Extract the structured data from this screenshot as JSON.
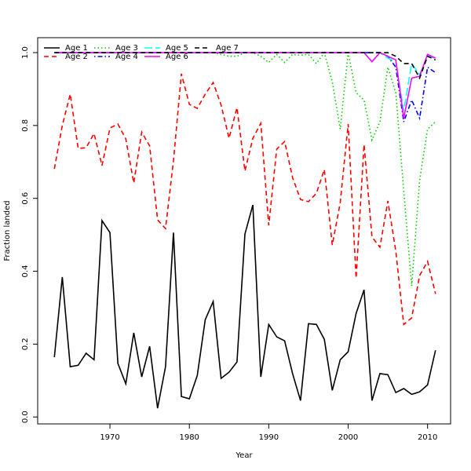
{
  "chart_data": {
    "type": "line",
    "xlabel": "Year",
    "ylabel": "Fraction landed",
    "x": [
      1963,
      1964,
      1965,
      1966,
      1967,
      1968,
      1969,
      1970,
      1971,
      1972,
      1973,
      1974,
      1975,
      1976,
      1977,
      1978,
      1979,
      1980,
      1981,
      1982,
      1983,
      1984,
      1985,
      1986,
      1987,
      1988,
      1989,
      1990,
      1991,
      1992,
      1993,
      1994,
      1995,
      1996,
      1997,
      1998,
      1999,
      2000,
      2001,
      2002,
      2003,
      2004,
      2005,
      2006,
      2007,
      2008,
      2009,
      2010,
      2011
    ],
    "xlim": [
      1960.9,
      2012.9
    ],
    "xticks": [
      1970,
      1980,
      1990,
      2000,
      2010
    ],
    "ylim": [
      -0.019,
      1.041
    ],
    "yticks": [
      {
        "value": 0,
        "label": "0.0"
      },
      0.2,
      0.4,
      0.6,
      0.8,
      {
        "value": 1,
        "label": "1.0"
      }
    ],
    "legend": "top-left",
    "series": [
      {
        "name": "Age 1",
        "color": "#000000",
        "line_style": "solid",
        "values": [
          0.164,
          0.384,
          0.138,
          0.142,
          0.175,
          0.157,
          0.539,
          0.506,
          0.147,
          0.091,
          0.231,
          0.11,
          0.194,
          0.024,
          0.138,
          0.506,
          0.056,
          0.05,
          0.114,
          0.267,
          0.317,
          0.106,
          0.123,
          0.151,
          0.502,
          0.582,
          0.11,
          0.254,
          0.22,
          0.209,
          0.119,
          0.045,
          0.256,
          0.254,
          0.213,
          0.073,
          0.157,
          0.179,
          0.284,
          0.349,
          0.045,
          0.119,
          0.116,
          0.067,
          0.078,
          0.062,
          0.069,
          0.088,
          0.183
        ]
      },
      {
        "name": "Age 2",
        "color": "#ff0000",
        "line_style": "dashed",
        "values": [
          0.681,
          0.8,
          0.886,
          0.737,
          0.739,
          0.778,
          0.69,
          0.793,
          0.804,
          0.763,
          0.642,
          0.782,
          0.744,
          0.541,
          0.517,
          0.703,
          0.942,
          0.858,
          0.847,
          0.886,
          0.918,
          0.856,
          0.765,
          0.849,
          0.675,
          0.765,
          0.806,
          0.526,
          0.735,
          0.756,
          0.657,
          0.597,
          0.591,
          0.614,
          0.679,
          0.472,
          0.588,
          0.804,
          0.381,
          0.748,
          0.494,
          0.466,
          0.593,
          0.455,
          0.254,
          0.272,
          0.388,
          0.427,
          0.338
        ]
      },
      {
        "name": "Age 3",
        "color": "#00cd00",
        "line_style": "dotted",
        "values": [
          1,
          1,
          1,
          1,
          1,
          1,
          1,
          1,
          1,
          1,
          1,
          1,
          1,
          1,
          1,
          1,
          1,
          1,
          1,
          1,
          1,
          0.995,
          0.99,
          0.99,
          1,
          1,
          0.99,
          0.973,
          0.995,
          0.973,
          0.995,
          0.993,
          0.995,
          0.97,
          1,
          0.92,
          0.79,
          1,
          0.89,
          0.87,
          0.76,
          0.81,
          0.96,
          0.89,
          0.62,
          0.36,
          0.65,
          0.79,
          0.81
        ]
      },
      {
        "name": "Age 4",
        "color": "#0000ff",
        "line_style": "dotdash",
        "values": [
          1,
          1,
          1,
          1,
          1,
          1,
          1,
          1,
          1,
          1,
          1,
          1,
          1,
          1,
          1,
          1,
          1,
          1,
          1,
          1,
          1,
          1,
          1,
          1,
          1,
          1,
          1,
          1,
          1,
          1,
          1,
          1,
          1,
          1,
          1,
          1,
          1,
          1,
          1,
          1,
          1,
          1,
          0.99,
          0.96,
          0.81,
          0.87,
          0.82,
          0.96,
          0.945
        ]
      },
      {
        "name": "Age 5",
        "color": "#00ffff",
        "line_style": "longdash",
        "values": [
          1,
          1,
          1,
          1,
          1,
          1,
          1,
          1,
          1,
          1,
          1,
          1,
          1,
          1,
          1,
          1,
          1,
          1,
          1,
          1,
          1,
          1,
          1,
          1,
          1,
          1,
          1,
          1,
          1,
          1,
          1,
          1,
          1,
          1,
          1,
          1,
          1,
          1,
          1,
          1,
          0.975,
          1,
          0.985,
          0.975,
          0.84,
          0.97,
          0.94,
          0.99,
          0.985
        ]
      },
      {
        "name": "Age 6",
        "color": "#ff00ff",
        "line_style": "solid",
        "values": [
          1,
          1,
          1,
          1,
          1,
          1,
          1,
          1,
          1,
          1,
          1,
          1,
          1,
          1,
          1,
          1,
          1,
          1,
          1,
          1,
          1,
          1,
          1,
          1,
          1,
          1,
          1,
          1,
          1,
          1,
          1,
          1,
          1,
          1,
          1,
          1,
          1,
          1,
          1,
          1,
          0.975,
          1,
          0.99,
          0.98,
          0.82,
          0.93,
          0.935,
          0.995,
          0.985
        ]
      },
      {
        "name": "Age 7",
        "color": "#000000",
        "line_style": "dashed",
        "values": [
          1,
          1,
          1,
          1,
          1,
          1,
          1,
          1,
          1,
          1,
          1,
          1,
          1,
          1,
          1,
          1,
          1,
          1,
          1,
          1,
          1,
          1,
          1,
          1,
          1,
          1,
          1,
          1,
          1,
          1,
          1,
          1,
          1,
          1,
          1,
          1,
          1,
          1,
          1,
          1,
          1,
          1,
          1,
          0.99,
          0.97,
          0.97,
          0.93,
          0.99,
          0.98
        ]
      }
    ]
  }
}
